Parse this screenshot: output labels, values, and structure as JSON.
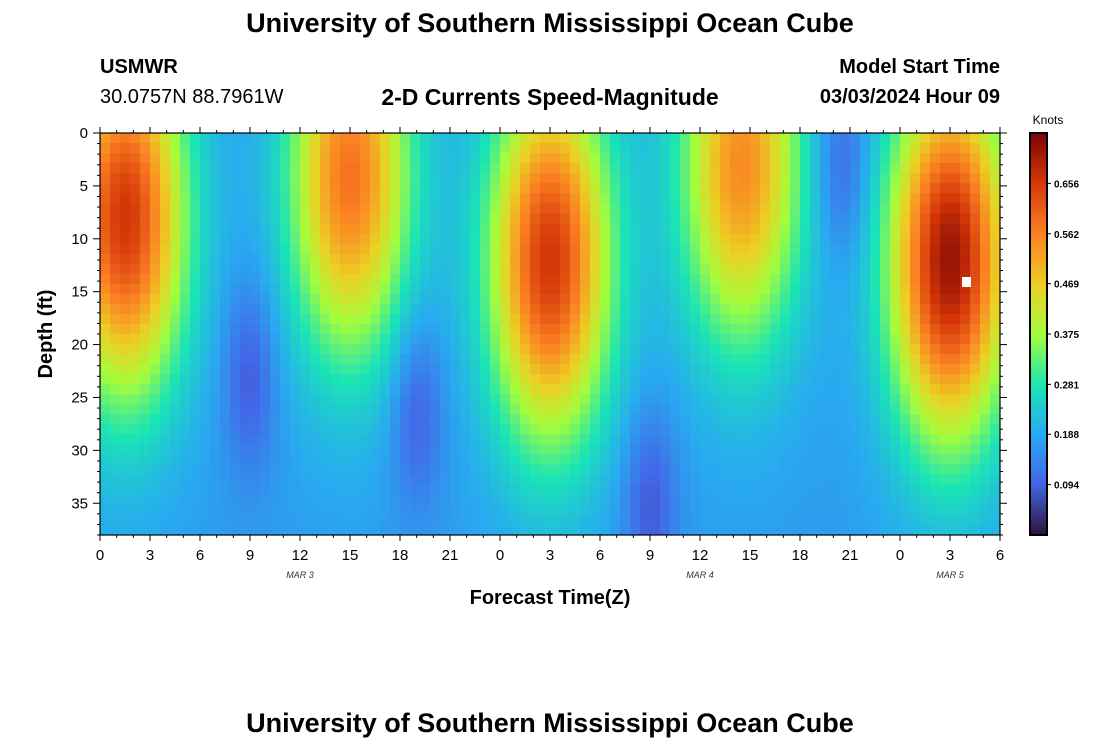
{
  "header": {
    "title": "University of Southern Mississippi Ocean Cube",
    "station": "USMWR",
    "coordinates": "30.0757N  88.7961W",
    "subtitle": "2-D Currents Speed-Magnitude",
    "model_start_label": "Model Start Time",
    "model_start_value": "03/03/2024 Hour 09"
  },
  "footer": {
    "title": "University of Southern Mississippi Ocean Cube"
  },
  "chart_data": {
    "type": "heatmap",
    "xlabel": "Forecast Time(Z)",
    "ylabel": "Depth (ft)",
    "x_tick_labels": [
      "0",
      "3",
      "6",
      "9",
      "12",
      "15",
      "18",
      "21",
      "0",
      "3",
      "6",
      "9",
      "12",
      "15",
      "18",
      "21",
      "0",
      "3",
      "6"
    ],
    "x_range_hours": [
      0,
      54
    ],
    "y_ticks": [
      0,
      5,
      10,
      15,
      20,
      25,
      30,
      35
    ],
    "y_range": [
      0,
      38
    ],
    "y_inverted": true,
    "date_labels": [
      {
        "label": "MAR 3",
        "hour": 12
      },
      {
        "label": "MAR 4",
        "hour": 36
      },
      {
        "label": "MAR 5",
        "hour": 51
      }
    ],
    "colorbar": {
      "title": "Knots",
      "ticks": [
        "0.656",
        "0.562",
        "0.469",
        "0.375",
        "0.281",
        "0.188",
        "0.094"
      ],
      "range": [
        0,
        0.75
      ],
      "colormap": "turbo"
    },
    "speed_peaks_knots": [
      {
        "hour": 1.5,
        "depth_ft": 8,
        "speed": 0.66
      },
      {
        "hour": 15,
        "depth_ft": 4,
        "speed": 0.58
      },
      {
        "hour": 27,
        "depth_ft": 12,
        "speed": 0.66
      },
      {
        "hour": 38.5,
        "depth_ft": 3,
        "speed": 0.55
      },
      {
        "hour": 51,
        "depth_ft": 12,
        "speed": 0.72
      }
    ],
    "speed_minima_knots": [
      {
        "hour": 9,
        "depth_ft": 23,
        "speed": 0.08
      },
      {
        "hour": 19,
        "depth_ft": 26,
        "speed": 0.09
      },
      {
        "hour": 33,
        "depth_ft": 35,
        "speed": 0.1
      },
      {
        "hour": 44.5,
        "depth_ft": 3,
        "speed": 0.06
      }
    ]
  }
}
